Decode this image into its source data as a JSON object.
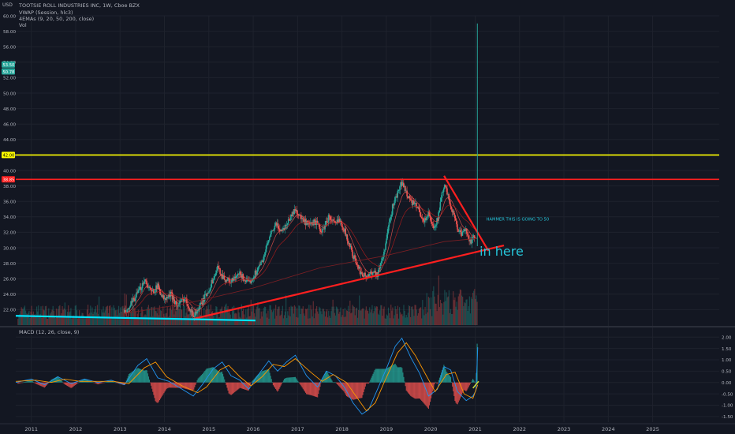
{
  "header": {
    "currency": "USD",
    "title": "TOOTSIE ROLL INDUSTRIES INC, 1W, Cboe BZX",
    "indicators": [
      "VWAP (Session, hlc3)",
      "4EMAs (9, 20, 50, 200, close)",
      "Vol"
    ]
  },
  "colors": {
    "background": "#131722",
    "grid": "#1e222d",
    "up": "#26a69a",
    "down": "#ef5350",
    "yellow_line": "#ffff00",
    "red_line": "#ff1f1f",
    "cyan_line": "#00e5ff",
    "annotation": "#26c6da",
    "axis_text": "#b2b5be"
  },
  "chart_data": [
    {
      "type": "candlestick",
      "name": "price",
      "ylim": [
        20,
        60
      ],
      "xlim": [
        2010.65,
        2026.5
      ],
      "y_ticks": [
        "22.00",
        "24.00",
        "26.00",
        "28.00",
        "30.00",
        "32.00",
        "34.00",
        "36.00",
        "38.00",
        "40.00",
        "42.00",
        "44.00",
        "46.00",
        "48.00",
        "50.00",
        "52.00",
        "54.00",
        "56.00",
        "58.00",
        "60.00"
      ],
      "x_ticks": [
        "2011",
        "2012",
        "2013",
        "2014",
        "2015",
        "2016",
        "2017",
        "2018",
        "2019",
        "2020",
        "2021",
        "2022",
        "2023",
        "2024",
        "2025"
      ],
      "price_badges": [
        {
          "text": "53.50",
          "y": 53.7,
          "color": "#26a69a"
        },
        {
          "text": "50.78",
          "y": 52.8,
          "color": "#26a69a"
        },
        {
          "text": "42.00",
          "y": 42.0,
          "color": "#ffff00"
        },
        {
          "text": "38.85",
          "y": 38.85,
          "color": "#ff1f1f"
        }
      ],
      "horizontal_lines": [
        {
          "y": 42.0,
          "color": "#ffff00"
        },
        {
          "y": 38.85,
          "color": "#ff1f1f"
        }
      ],
      "price_path": [
        [
          2013.15,
          21.6
        ],
        [
          2013.3,
          23.2
        ],
        [
          2013.45,
          24.6
        ],
        [
          2013.55,
          26.0
        ],
        [
          2013.7,
          24.2
        ],
        [
          2013.85,
          25.0
        ],
        [
          2014.0,
          23.2
        ],
        [
          2014.15,
          24.0
        ],
        [
          2014.3,
          22.4
        ],
        [
          2014.45,
          23.6
        ],
        [
          2014.65,
          21.2
        ],
        [
          2014.8,
          22.4
        ],
        [
          2015.0,
          24.6
        ],
        [
          2015.2,
          27.4
        ],
        [
          2015.35,
          26.0
        ],
        [
          2015.5,
          25.6
        ],
        [
          2015.7,
          26.6
        ],
        [
          2015.9,
          25.3
        ],
        [
          2016.05,
          26.8
        ],
        [
          2016.2,
          28.2
        ],
        [
          2016.35,
          31.0
        ],
        [
          2016.5,
          33.0
        ],
        [
          2016.65,
          32.2
        ],
        [
          2016.8,
          33.6
        ],
        [
          2016.95,
          35.0
        ],
        [
          2017.1,
          33.6
        ],
        [
          2017.25,
          32.8
        ],
        [
          2017.4,
          33.4
        ],
        [
          2017.55,
          32.0
        ],
        [
          2017.7,
          34.0
        ],
        [
          2017.85,
          33.0
        ],
        [
          2017.95,
          33.8
        ],
        [
          2018.1,
          31.5
        ],
        [
          2018.25,
          29.0
        ],
        [
          2018.4,
          27.0
        ],
        [
          2018.55,
          26.2
        ],
        [
          2018.7,
          27.0
        ],
        [
          2018.8,
          26.5
        ],
        [
          2018.95,
          29.5
        ],
        [
          2019.05,
          32.6
        ],
        [
          2019.15,
          35.6
        ],
        [
          2019.25,
          37.0
        ],
        [
          2019.35,
          38.4
        ],
        [
          2019.45,
          37.2
        ],
        [
          2019.55,
          36.0
        ],
        [
          2019.7,
          35.2
        ],
        [
          2019.85,
          33.4
        ],
        [
          2019.95,
          34.4
        ],
        [
          2020.05,
          32.6
        ],
        [
          2020.15,
          33.6
        ],
        [
          2020.3,
          38.2
        ],
        [
          2020.4,
          36.4
        ],
        [
          2020.5,
          34.6
        ],
        [
          2020.6,
          32.6
        ],
        [
          2020.7,
          31.6
        ],
        [
          2020.8,
          32.4
        ],
        [
          2020.9,
          30.6
        ],
        [
          2020.98,
          31.4
        ],
        [
          2021.05,
          30.2
        ]
      ],
      "drawings": [
        {
          "kind": "trendline",
          "color": "#ff1f1f",
          "from": [
            2014.65,
            20.8
          ],
          "to": [
            2021.65,
            30.3
          ]
        },
        {
          "kind": "trendline",
          "color": "#ff1f1f",
          "from": [
            2020.3,
            39.3
          ],
          "to": [
            2021.3,
            29.6
          ]
        },
        {
          "kind": "trendline",
          "color": "#00e5ff",
          "from": [
            2010.65,
            21.2
          ],
          "to": [
            2016.05,
            20.6
          ]
        },
        {
          "kind": "spike",
          "color": "#26a69a",
          "x": 2021.05,
          "from": 30.2,
          "to": 59.0
        }
      ],
      "annotations": [
        {
          "text": "HAMMER THIS IS GOING TO 50",
          "x": 2021.25,
          "y": 33.5,
          "size": "small"
        },
        {
          "text": "in here",
          "x": 2021.1,
          "y": 29.0,
          "size": "large"
        }
      ]
    },
    {
      "type": "line",
      "name": "MACD (12, 26, close, 9)",
      "ylim": [
        -1.75,
        2.25
      ],
      "y_ticks": [
        "2.00",
        "1.50",
        "1.00",
        "0.50",
        "0.00",
        "-0.50",
        "-1.00",
        "-1.50"
      ],
      "macd_points": [
        [
          2010.65,
          0.0
        ],
        [
          2011.0,
          0.15
        ],
        [
          2011.3,
          -0.1
        ],
        [
          2011.6,
          0.25
        ],
        [
          2011.9,
          -0.05
        ],
        [
          2012.2,
          0.15
        ],
        [
          2012.5,
          0.0
        ],
        [
          2012.8,
          0.1
        ],
        [
          2013.1,
          -0.1
        ],
        [
          2013.4,
          0.75
        ],
        [
          2013.6,
          1.05
        ],
        [
          2013.85,
          0.2
        ],
        [
          2014.1,
          0.05
        ],
        [
          2014.4,
          -0.3
        ],
        [
          2014.65,
          -0.6
        ],
        [
          2014.85,
          -0.1
        ],
        [
          2015.1,
          0.6
        ],
        [
          2015.3,
          0.9
        ],
        [
          2015.5,
          0.3
        ],
        [
          2015.7,
          0.1
        ],
        [
          2015.9,
          -0.3
        ],
        [
          2016.1,
          0.3
        ],
        [
          2016.35,
          0.95
        ],
        [
          2016.55,
          0.5
        ],
        [
          2016.75,
          0.9
        ],
        [
          2016.95,
          1.2
        ],
        [
          2017.2,
          0.3
        ],
        [
          2017.45,
          -0.2
        ],
        [
          2017.65,
          0.5
        ],
        [
          2017.85,
          0.3
        ],
        [
          2018.05,
          -0.2
        ],
        [
          2018.25,
          -0.9
        ],
        [
          2018.45,
          -1.4
        ],
        [
          2018.6,
          -1.2
        ],
        [
          2018.8,
          -0.3
        ],
        [
          2019.0,
          0.6
        ],
        [
          2019.2,
          1.6
        ],
        [
          2019.35,
          1.95
        ],
        [
          2019.55,
          1.1
        ],
        [
          2019.75,
          0.4
        ],
        [
          2019.95,
          -0.6
        ],
        [
          2020.15,
          -0.3
        ],
        [
          2020.3,
          0.7
        ],
        [
          2020.45,
          0.55
        ],
        [
          2020.6,
          -0.4
        ],
        [
          2020.8,
          -0.8
        ],
        [
          2020.95,
          -0.6
        ],
        [
          2021.02,
          -0.35
        ],
        [
          2021.06,
          1.55
        ]
      ],
      "signal_points": [
        [
          2010.65,
          0.05
        ],
        [
          2011.1,
          0.1
        ],
        [
          2011.45,
          0.0
        ],
        [
          2011.75,
          0.15
        ],
        [
          2012.1,
          0.05
        ],
        [
          2012.45,
          0.05
        ],
        [
          2012.85,
          0.05
        ],
        [
          2013.2,
          -0.05
        ],
        [
          2013.55,
          0.65
        ],
        [
          2013.8,
          0.9
        ],
        [
          2014.05,
          0.25
        ],
        [
          2014.4,
          -0.15
        ],
        [
          2014.75,
          -0.45
        ],
        [
          2014.95,
          -0.2
        ],
        [
          2015.25,
          0.55
        ],
        [
          2015.45,
          0.75
        ],
        [
          2015.7,
          0.25
        ],
        [
          2015.95,
          -0.15
        ],
        [
          2016.2,
          0.25
        ],
        [
          2016.45,
          0.8
        ],
        [
          2016.7,
          0.7
        ],
        [
          2016.95,
          1.05
        ],
        [
          2017.3,
          0.45
        ],
        [
          2017.55,
          0.05
        ],
        [
          2017.8,
          0.35
        ],
        [
          2018.1,
          0.0
        ],
        [
          2018.35,
          -0.7
        ],
        [
          2018.55,
          -1.25
        ],
        [
          2018.75,
          -0.9
        ],
        [
          2018.95,
          0.0
        ],
        [
          2019.25,
          1.3
        ],
        [
          2019.45,
          1.75
        ],
        [
          2019.65,
          1.2
        ],
        [
          2019.9,
          0.3
        ],
        [
          2020.1,
          -0.4
        ],
        [
          2020.35,
          0.35
        ],
        [
          2020.55,
          0.45
        ],
        [
          2020.75,
          -0.5
        ],
        [
          2020.95,
          -0.7
        ],
        [
          2021.06,
          -0.1
        ]
      ]
    }
  ]
}
